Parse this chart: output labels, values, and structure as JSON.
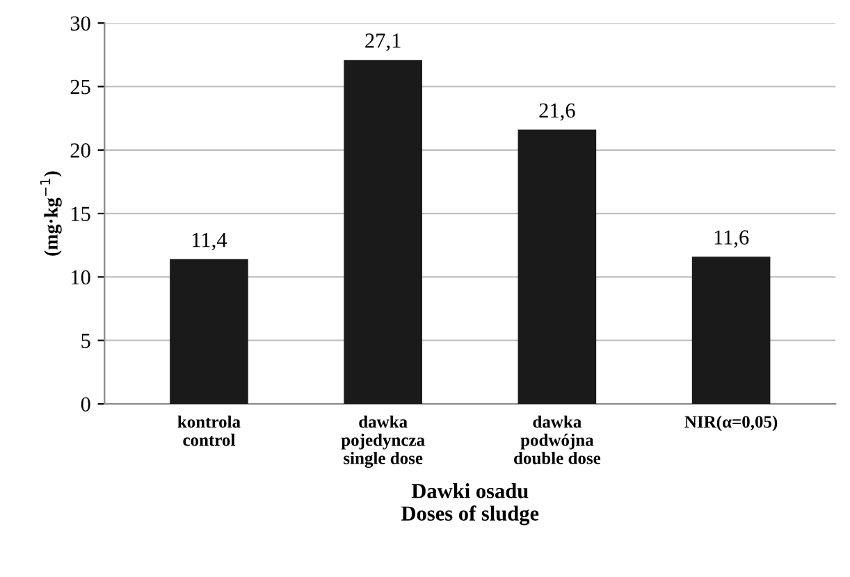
{
  "chart_data": {
    "type": "bar",
    "categories": [
      "kontrola\ncontrol",
      "dawka\npojedyncza\nsingle dose",
      "dawka\npodwójna\ndouble dose",
      "NIR(α=0,05)"
    ],
    "values": [
      11.4,
      27.1,
      21.6,
      11.6
    ],
    "value_labels": [
      "11,4",
      "27,1",
      "21,6",
      "11,6"
    ],
    "color": "#1a1a1a",
    "ylabel": "(mg·kg$^{−1}$)",
    "xlabel": "Dawki osadu\nDoses of sludge",
    "ylim": [
      0,
      30
    ],
    "yticks": [
      0,
      5,
      10,
      15,
      20,
      25,
      30
    ],
    "grid": "y",
    "legend": false
  }
}
